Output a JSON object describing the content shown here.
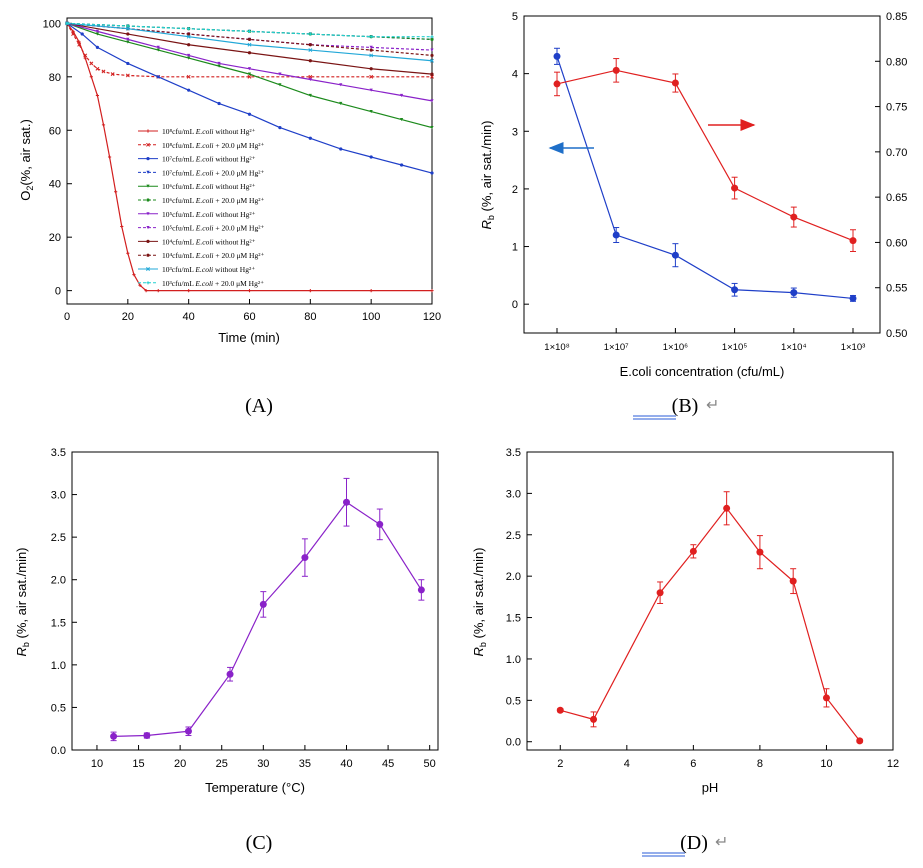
{
  "chart_data": [
    {
      "id": "A",
      "type": "line",
      "panel_label": "(A)",
      "xlabel": "Time (min)",
      "ylabel": "O2(%, air sat.)",
      "xlim": [
        0,
        120
      ],
      "ylim": [
        -5,
        102
      ],
      "xticks": [
        0,
        20,
        40,
        60,
        80,
        100,
        120
      ],
      "yticks": [
        0,
        20,
        40,
        60,
        80,
        100
      ],
      "legend_position": "center-left",
      "series": [
        {
          "name": "10⁸cfu/mL E.coli without Hg²⁺",
          "color": "#d21f1f",
          "dash": "",
          "marker": "plus",
          "x": [
            0,
            2,
            4,
            6,
            8,
            10,
            12,
            14,
            16,
            18,
            20,
            22,
            24,
            26,
            30,
            40,
            60,
            80,
            100,
            120
          ],
          "y": [
            100,
            97,
            93,
            87,
            80,
            73,
            62,
            50,
            37,
            24,
            14,
            6,
            2,
            0,
            0,
            0,
            0,
            0,
            0,
            0
          ]
        },
        {
          "name": "10⁸cfu/mL E.coli + 20.0 μM Hg²⁺",
          "color": "#d21f1f",
          "dash": "3,2",
          "marker": "x",
          "x": [
            0,
            2,
            4,
            6,
            8,
            10,
            12,
            15,
            20,
            30,
            40,
            60,
            80,
            100,
            120
          ],
          "y": [
            100,
            96,
            92,
            88,
            85,
            83,
            82,
            81,
            80.5,
            80,
            80,
            80,
            80,
            80,
            80
          ]
        },
        {
          "name": "10⁷cfu/mL E.coli without Hg²⁺",
          "color": "#1f3fc8",
          "dash": "",
          "marker": "dot",
          "x": [
            0,
            5,
            10,
            20,
            30,
            40,
            50,
            60,
            70,
            80,
            90,
            100,
            110,
            120
          ],
          "y": [
            100,
            96,
            91,
            85,
            80,
            75,
            70,
            66,
            61,
            57,
            53,
            50,
            47,
            44
          ]
        },
        {
          "name": "10⁷cfu/mL E.coli + 20.0 μM Hg²⁺",
          "color": "#1f3fc8",
          "dash": "3,2",
          "marker": "tri",
          "x": [
            0,
            20,
            40,
            60,
            80,
            100,
            120
          ],
          "y": [
            100,
            99,
            98,
            97,
            96,
            95,
            94
          ]
        },
        {
          "name": "10⁶cfu/mL E.coli without Hg²⁺",
          "color": "#1c8a1c",
          "dash": "",
          "marker": "tri",
          "x": [
            0,
            10,
            20,
            30,
            40,
            50,
            60,
            70,
            80,
            90,
            100,
            110,
            120
          ],
          "y": [
            100,
            96,
            93,
            90,
            87,
            84,
            81,
            77,
            73,
            70,
            67,
            64,
            61
          ]
        },
        {
          "name": "10⁶cfu/mL E.coli + 20.0 μM Hg²⁺",
          "color": "#1c8a1c",
          "dash": "3,2",
          "marker": "dot",
          "x": [
            0,
            20,
            40,
            60,
            80,
            100,
            120
          ],
          "y": [
            100,
            99,
            98,
            97,
            96,
            95,
            94
          ]
        },
        {
          "name": "10⁵cfu/mL E.coli without Hg²⁺",
          "color": "#8a22c9",
          "dash": "",
          "marker": "tri",
          "x": [
            0,
            10,
            20,
            30,
            40,
            50,
            60,
            70,
            80,
            90,
            100,
            110,
            120
          ],
          "y": [
            100,
            97,
            94,
            91,
            88,
            85,
            83,
            81,
            79,
            77,
            75,
            73,
            71
          ]
        },
        {
          "name": "10⁵cfu/mL E.coli + 20.0 μM Hg²⁺",
          "color": "#8a22c9",
          "dash": "3,2",
          "marker": "tri",
          "x": [
            0,
            20,
            40,
            60,
            80,
            100,
            120
          ],
          "y": [
            100,
            98,
            96,
            94,
            92,
            91,
            90
          ]
        },
        {
          "name": "10⁴cfu/mL E.coli without Hg²⁺",
          "color": "#7a1414",
          "dash": "",
          "marker": "dot",
          "x": [
            0,
            20,
            40,
            60,
            80,
            100,
            120
          ],
          "y": [
            100,
            96,
            92,
            89,
            86,
            83,
            81
          ]
        },
        {
          "name": "10⁴cfu/mL E.coli + 20.0 μM Hg²⁺",
          "color": "#7a1414",
          "dash": "3,2",
          "marker": "dot",
          "x": [
            0,
            20,
            40,
            60,
            80,
            100,
            120
          ],
          "y": [
            100,
            98,
            96,
            94,
            92,
            90,
            88
          ]
        },
        {
          "name": "10³cfu/mL E.coli without Hg²⁺",
          "color": "#22a8d8",
          "dash": "",
          "marker": "x",
          "x": [
            0,
            20,
            40,
            60,
            80,
            100,
            120
          ],
          "y": [
            100,
            98,
            95,
            92,
            90,
            88,
            86
          ]
        },
        {
          "name": "10³cfu/mL E.coli + 20.0 μM Hg²⁺",
          "color": "#22d0d0",
          "dash": "3,2",
          "marker": "plus",
          "x": [
            0,
            20,
            40,
            60,
            80,
            100,
            120
          ],
          "y": [
            100,
            99,
            98,
            97,
            96,
            95,
            95
          ]
        }
      ]
    },
    {
      "id": "B",
      "type": "line",
      "panel_label": "(B)",
      "xlabel": "E.coli concentration (cfu/mL)",
      "ylabel": "Rb (%, air sat./min)",
      "categories": [
        "1×10⁸",
        "1×10⁷",
        "1×10⁶",
        "1×10⁵",
        "1×10⁴",
        "1×10³"
      ],
      "ylim": [
        -0.5,
        5
      ],
      "yticks": [
        0,
        1,
        2,
        3,
        4,
        5
      ],
      "y2lim": [
        0.5,
        0.85
      ],
      "y2ticks": [
        "0.50",
        "0.55",
        "0.60",
        "0.65",
        "0.70",
        "0.75",
        "0.80",
        "0.85"
      ],
      "series": [
        {
          "name": "left axis (blue)",
          "axis": "left",
          "color": "#1f3fc8",
          "values": [
            4.3,
            1.2,
            0.85,
            0.25,
            0.2,
            0.1
          ],
          "errors": [
            0.14,
            0.13,
            0.2,
            0.11,
            0.08,
            0.05
          ]
        },
        {
          "name": "right axis (red)",
          "axis": "right",
          "color": "#e02020",
          "values": [
            0.775,
            0.79,
            0.776,
            0.66,
            0.628,
            0.602
          ],
          "errors": [
            0.013,
            0.013,
            0.01,
            0.012,
            0.011,
            0.012
          ]
        }
      ]
    },
    {
      "id": "C",
      "type": "line",
      "panel_label": "(C)",
      "xlabel": "Temperature (°C)",
      "ylabel": "Rb (%, air sat./min)",
      "xlim": [
        7,
        51
      ],
      "ylim": [
        0,
        3.5
      ],
      "xticks": [
        10,
        15,
        20,
        25,
        30,
        35,
        40,
        45,
        50
      ],
      "yticks": [
        "0.0",
        "0.5",
        "1.0",
        "1.5",
        "2.0",
        "2.5",
        "3.0",
        "3.5"
      ],
      "series": [
        {
          "name": "Rb vs Temperature",
          "color": "#8a22c9",
          "x": [
            12,
            16,
            21,
            26,
            30,
            35,
            40,
            44,
            49
          ],
          "values": [
            0.16,
            0.17,
            0.22,
            0.89,
            1.71,
            2.26,
            2.91,
            2.65,
            1.88
          ],
          "errors": [
            0.05,
            0.03,
            0.05,
            0.08,
            0.15,
            0.22,
            0.28,
            0.18,
            0.12
          ]
        }
      ]
    },
    {
      "id": "D",
      "type": "line",
      "panel_label": "(D)",
      "xlabel": "pH",
      "ylabel": "Rb (%, air sat./min)",
      "xlim": [
        1,
        12
      ],
      "ylim": [
        -0.1,
        3.5
      ],
      "xticks": [
        2,
        4,
        6,
        8,
        10,
        12
      ],
      "yticks": [
        "0.0",
        "0.5",
        "1.0",
        "1.5",
        "2.0",
        "2.5",
        "3.0",
        "3.5"
      ],
      "series": [
        {
          "name": "Rb vs pH",
          "color": "#e02020",
          "x": [
            2,
            3,
            5,
            6,
            7,
            8,
            9,
            10,
            11
          ],
          "values": [
            0.38,
            0.27,
            1.8,
            2.3,
            2.82,
            2.29,
            1.94,
            0.53,
            0.01
          ],
          "errors": [
            0.02,
            0.09,
            0.13,
            0.08,
            0.2,
            0.2,
            0.15,
            0.11,
            0.02
          ]
        }
      ]
    }
  ],
  "captions": {
    "a": "(A)",
    "b": "(B)",
    "c": "(C)",
    "d": "(D)",
    "return_mark": "↵"
  }
}
